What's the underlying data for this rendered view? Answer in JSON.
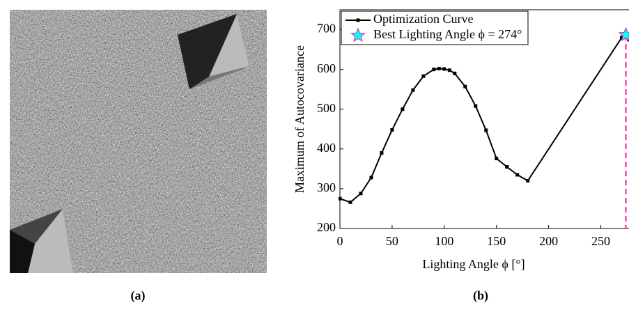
{
  "captions": [
    "(a)",
    "(b)"
  ],
  "chart_data": {
    "type": "line",
    "xlabel": "Lighting Angle ϕ [°]",
    "ylabel": "Maximum of Autocovariance",
    "x": [
      0,
      10,
      20,
      30,
      40,
      50,
      60,
      70,
      80,
      90,
      95,
      100,
      105,
      110,
      120,
      130,
      140,
      150,
      160,
      170,
      180,
      270,
      274,
      277
    ],
    "series": [
      {
        "name": "Optimization Curve",
        "color": "#000000",
        "values": [
          275,
          266,
          288,
          328,
          390,
          448,
          500,
          548,
          583,
          600,
          602,
          601,
          598,
          590,
          557,
          508,
          447,
          376,
          355,
          335,
          320,
          680,
          687,
          675
        ]
      }
    ],
    "highlight": {
      "name": "Best Lighting Angle ϕ = 274°",
      "x": 274,
      "y": 687,
      "color": "#00ffff",
      "edge": "#ff1493"
    },
    "xlim": [
      0,
      277
    ],
    "xticks": [
      0,
      50,
      100,
      150,
      200,
      250
    ],
    "ylim": [
      200,
      750
    ],
    "yticks": [
      200,
      300,
      400,
      500,
      600,
      700
    ],
    "legend": "upper-left"
  }
}
